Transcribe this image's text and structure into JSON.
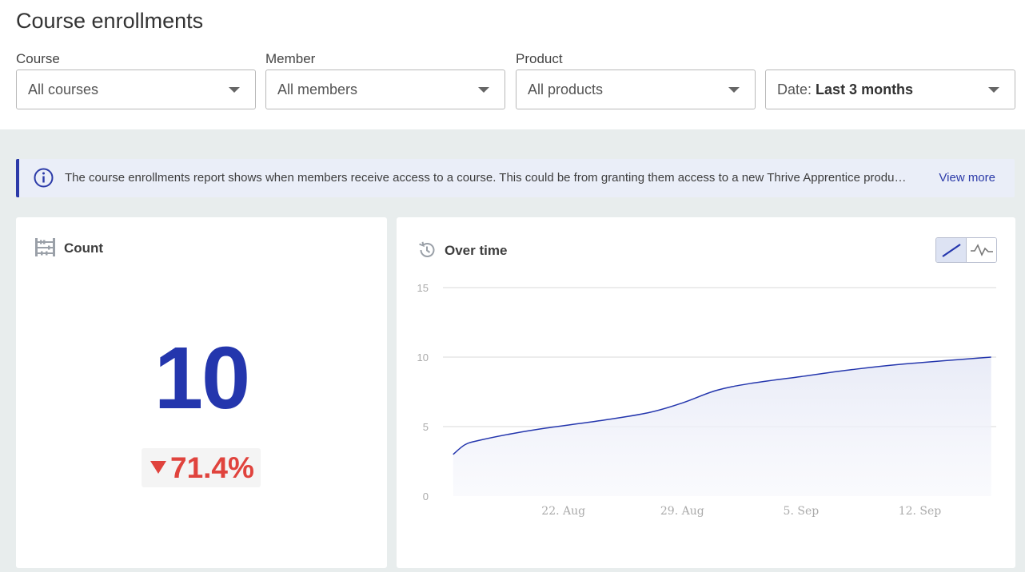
{
  "page": {
    "title": "Course enrollments"
  },
  "filters": {
    "course": {
      "label": "Course",
      "value": "All courses"
    },
    "member": {
      "label": "Member",
      "value": "All members"
    },
    "product": {
      "label": "Product",
      "value": "All products"
    },
    "date": {
      "prefix": "Date:",
      "value": "Last 3 months"
    }
  },
  "info": {
    "text": "The course enrollments report shows when members receive access to a course. This could be from granting them access to a new Thrive Apprentice produ…",
    "link": "View more"
  },
  "count_card": {
    "title": "Count",
    "value": "10",
    "delta": "71.4%",
    "delta_direction": "down",
    "delta_color": "#e0433d",
    "value_color": "#2436ad"
  },
  "time_card": {
    "title": "Over time",
    "toggle": [
      {
        "name": "cumulative-line-icon",
        "active": true
      },
      {
        "name": "trend-line-icon",
        "active": false
      }
    ]
  },
  "chart_data": {
    "type": "area",
    "title": "",
    "xlabel": "",
    "ylabel": "",
    "ylim": [
      0,
      15
    ],
    "yticks": [
      0,
      5,
      10,
      15
    ],
    "xticks": [
      {
        "label": "22. Aug",
        "x": 22
      },
      {
        "label": "29. Aug",
        "x": 29
      },
      {
        "label": "5. Sep",
        "x": 36
      },
      {
        "label": "12. Sep",
        "x": 43
      }
    ],
    "xlim": [
      14.9,
      47.5
    ],
    "grid": true,
    "series": [
      {
        "color": "#2436ad",
        "points": [
          {
            "x": 15.5,
            "y": 3.0
          },
          {
            "x": 16.2,
            "y": 3.7
          },
          {
            "x": 17.0,
            "y": 4.0
          },
          {
            "x": 19.0,
            "y": 4.5
          },
          {
            "x": 21.0,
            "y": 4.9
          },
          {
            "x": 24.0,
            "y": 5.4
          },
          {
            "x": 27.0,
            "y": 6.0
          },
          {
            "x": 29.0,
            "y": 6.7
          },
          {
            "x": 31.0,
            "y": 7.6
          },
          {
            "x": 33.0,
            "y": 8.1
          },
          {
            "x": 36.0,
            "y": 8.6
          },
          {
            "x": 39.0,
            "y": 9.1
          },
          {
            "x": 42.0,
            "y": 9.5
          },
          {
            "x": 47.2,
            "y": 10.0
          }
        ]
      }
    ]
  }
}
